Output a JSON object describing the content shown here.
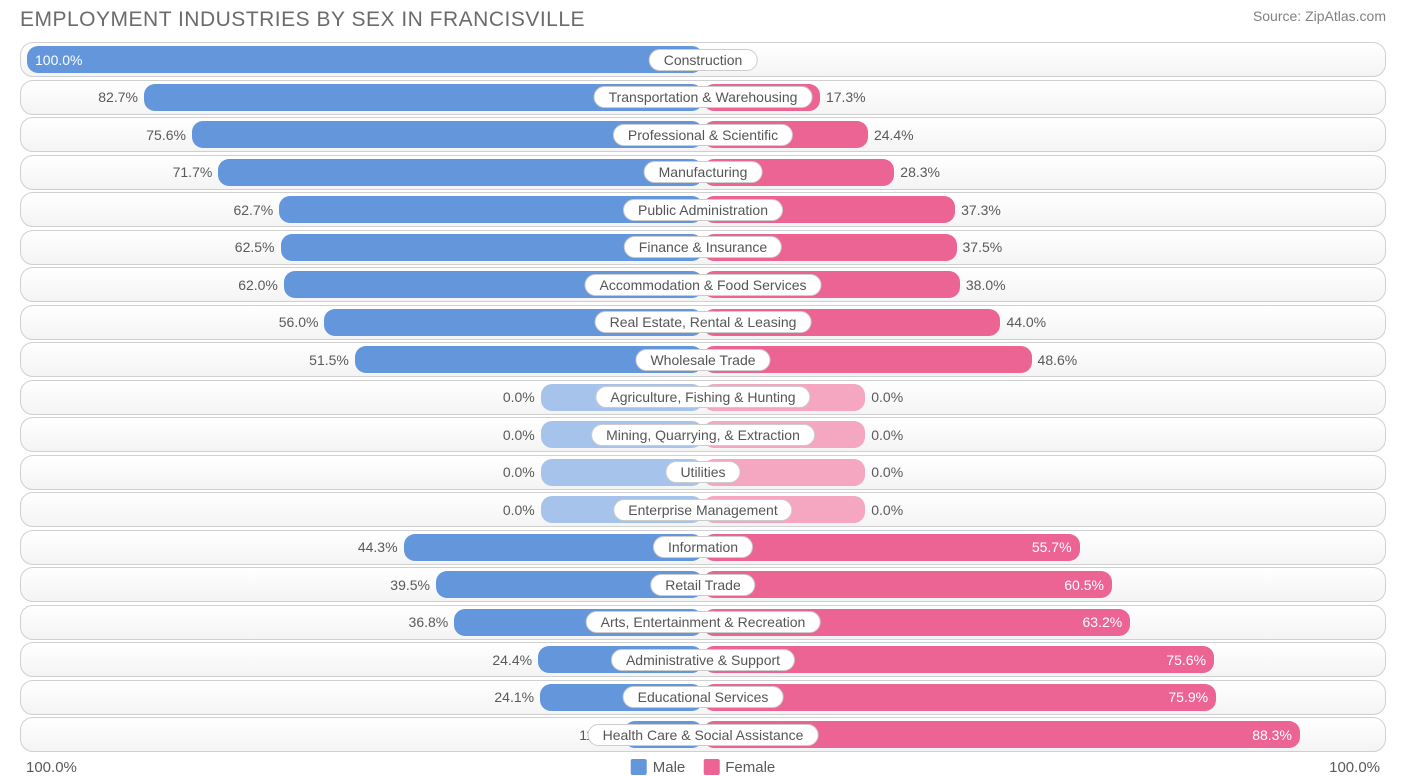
{
  "title": "EMPLOYMENT INDUSTRIES BY SEX IN FRANCISVILLE",
  "source": "Source: ZipAtlas.com",
  "colors": {
    "male_full": "#6496dc",
    "female_full": "#ec6493",
    "male_light": "#a6c4eb",
    "female_light": "#f5a6c1",
    "text_inside": "#ffffff",
    "text_outside": "#5a5a5a",
    "row_border": "#d0d0d0",
    "label_border": "#cccccc",
    "title_color": "#6b6b6b",
    "source_color": "#808080"
  },
  "axis": {
    "left_label": "100.0%",
    "right_label": "100.0%"
  },
  "legend": {
    "male": "Male",
    "female": "Female"
  },
  "zero_bar_pct": 12,
  "inside_threshold": 15,
  "rows": [
    {
      "label": "Construction",
      "male": 100.0,
      "female": 0.0,
      "zero": false
    },
    {
      "label": "Transportation & Warehousing",
      "male": 82.7,
      "female": 17.3,
      "zero": false
    },
    {
      "label": "Professional & Scientific",
      "male": 75.6,
      "female": 24.4,
      "zero": false
    },
    {
      "label": "Manufacturing",
      "male": 71.7,
      "female": 28.3,
      "zero": false
    },
    {
      "label": "Public Administration",
      "male": 62.7,
      "female": 37.3,
      "zero": false
    },
    {
      "label": "Finance & Insurance",
      "male": 62.5,
      "female": 37.5,
      "zero": false
    },
    {
      "label": "Accommodation & Food Services",
      "male": 62.0,
      "female": 38.0,
      "zero": false
    },
    {
      "label": "Real Estate, Rental & Leasing",
      "male": 56.0,
      "female": 44.0,
      "zero": false
    },
    {
      "label": "Wholesale Trade",
      "male": 51.5,
      "female": 48.6,
      "zero": false
    },
    {
      "label": "Agriculture, Fishing & Hunting",
      "male": 0.0,
      "female": 0.0,
      "zero": true
    },
    {
      "label": "Mining, Quarrying, & Extraction",
      "male": 0.0,
      "female": 0.0,
      "zero": true
    },
    {
      "label": "Utilities",
      "male": 0.0,
      "female": 0.0,
      "zero": true
    },
    {
      "label": "Enterprise Management",
      "male": 0.0,
      "female": 0.0,
      "zero": true
    },
    {
      "label": "Information",
      "male": 44.3,
      "female": 55.7,
      "zero": false
    },
    {
      "label": "Retail Trade",
      "male": 39.5,
      "female": 60.5,
      "zero": false
    },
    {
      "label": "Arts, Entertainment & Recreation",
      "male": 36.8,
      "female": 63.2,
      "zero": false
    },
    {
      "label": "Administrative & Support",
      "male": 24.4,
      "female": 75.6,
      "zero": false
    },
    {
      "label": "Educational Services",
      "male": 24.1,
      "female": 75.9,
      "zero": false
    },
    {
      "label": "Health Care & Social Assistance",
      "male": 11.7,
      "female": 88.3,
      "zero": false
    }
  ]
}
